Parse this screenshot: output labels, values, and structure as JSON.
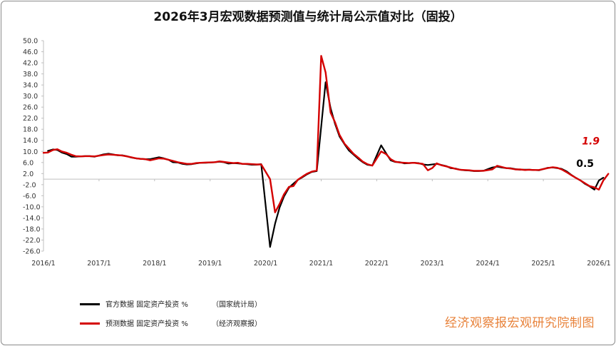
{
  "chart_data": {
    "type": "line",
    "title": "2026年3月宏观数据预测值与统计局公示值对比（固投）",
    "xlabel": "",
    "ylabel": "",
    "ylim": [
      -26,
      50
    ],
    "yticks": [
      "50.0",
      "46.0",
      "42.0",
      "38.0",
      "34.0",
      "30.0",
      "26.0",
      "22.0",
      "18.0",
      "14.0",
      "10.0",
      "6.0",
      "2.0",
      "-2.0",
      "-6.0",
      "-10.0",
      "-14.0",
      "-18.0",
      "-22.0",
      "-26.0"
    ],
    "xticks": [
      "2016/1",
      "2017/1",
      "2018/1",
      "2019/1",
      "2020/1",
      "2021/1",
      "2022/1",
      "2023/1",
      "2024/1",
      "2025/1",
      "2026/1"
    ],
    "grid": false,
    "legend_position": "bottom-left",
    "series": [
      {
        "name": "官方数据 固定资产投资 %",
        "source": "（国家统计局）",
        "color": "#000000",
        "points": [
          [
            2016.08,
            10.2
          ],
          [
            2016.17,
            10.7
          ],
          [
            2016.25,
            10.5
          ],
          [
            2016.33,
            9.6
          ],
          [
            2016.42,
            9.0
          ],
          [
            2016.5,
            8.1
          ],
          [
            2016.58,
            8.1
          ],
          [
            2016.67,
            8.2
          ],
          [
            2016.75,
            8.3
          ],
          [
            2016.83,
            8.3
          ],
          [
            2016.92,
            8.1
          ],
          [
            2017.08,
            8.9
          ],
          [
            2017.17,
            9.2
          ],
          [
            2017.25,
            8.9
          ],
          [
            2017.33,
            8.6
          ],
          [
            2017.42,
            8.6
          ],
          [
            2017.5,
            8.3
          ],
          [
            2017.58,
            7.8
          ],
          [
            2017.67,
            7.5
          ],
          [
            2017.75,
            7.3
          ],
          [
            2017.83,
            7.2
          ],
          [
            2017.92,
            7.2
          ],
          [
            2018.08,
            7.9
          ],
          [
            2018.17,
            7.5
          ],
          [
            2018.25,
            7.0
          ],
          [
            2018.33,
            6.1
          ],
          [
            2018.42,
            6.0
          ],
          [
            2018.5,
            5.5
          ],
          [
            2018.58,
            5.3
          ],
          [
            2018.67,
            5.4
          ],
          [
            2018.75,
            5.7
          ],
          [
            2018.83,
            5.9
          ],
          [
            2018.92,
            5.9
          ],
          [
            2019.08,
            6.1
          ],
          [
            2019.17,
            6.3
          ],
          [
            2019.25,
            6.1
          ],
          [
            2019.33,
            5.6
          ],
          [
            2019.42,
            5.8
          ],
          [
            2019.5,
            5.7
          ],
          [
            2019.58,
            5.5
          ],
          [
            2019.67,
            5.4
          ],
          [
            2019.75,
            5.2
          ],
          [
            2019.83,
            5.2
          ],
          [
            2019.92,
            5.4
          ],
          [
            2020.08,
            -24.5
          ],
          [
            2020.17,
            -16.1
          ],
          [
            2020.25,
            -10.3
          ],
          [
            2020.33,
            -6.3
          ],
          [
            2020.42,
            -3.1
          ],
          [
            2020.5,
            -1.6
          ],
          [
            2020.58,
            -0.3
          ],
          [
            2020.67,
            0.8
          ],
          [
            2020.75,
            1.8
          ],
          [
            2020.83,
            2.6
          ],
          [
            2020.92,
            2.9
          ],
          [
            2021.08,
            35.0
          ],
          [
            2021.17,
            25.6
          ],
          [
            2021.25,
            19.9
          ],
          [
            2021.33,
            15.4
          ],
          [
            2021.42,
            12.6
          ],
          [
            2021.5,
            10.3
          ],
          [
            2021.58,
            8.9
          ],
          [
            2021.67,
            7.3
          ],
          [
            2021.75,
            6.1
          ],
          [
            2021.83,
            5.2
          ],
          [
            2021.92,
            4.9
          ],
          [
            2022.08,
            12.2
          ],
          [
            2022.17,
            9.3
          ],
          [
            2022.25,
            6.8
          ],
          [
            2022.33,
            6.2
          ],
          [
            2022.42,
            6.1
          ],
          [
            2022.5,
            5.7
          ],
          [
            2022.58,
            5.8
          ],
          [
            2022.67,
            5.9
          ],
          [
            2022.75,
            5.8
          ],
          [
            2022.83,
            5.3
          ],
          [
            2022.92,
            5.1
          ],
          [
            2023.08,
            5.5
          ],
          [
            2023.17,
            5.1
          ],
          [
            2023.25,
            4.7
          ],
          [
            2023.33,
            4.0
          ],
          [
            2023.42,
            3.8
          ],
          [
            2023.5,
            3.4
          ],
          [
            2023.58,
            3.2
          ],
          [
            2023.67,
            3.1
          ],
          [
            2023.75,
            2.9
          ],
          [
            2023.83,
            2.9
          ],
          [
            2023.92,
            3.0
          ],
          [
            2024.08,
            4.2
          ],
          [
            2024.17,
            4.5
          ],
          [
            2024.25,
            4.2
          ],
          [
            2024.33,
            4.0
          ],
          [
            2024.42,
            3.9
          ],
          [
            2024.5,
            3.6
          ],
          [
            2024.58,
            3.4
          ],
          [
            2024.67,
            3.4
          ],
          [
            2024.75,
            3.4
          ],
          [
            2024.83,
            3.3
          ],
          [
            2024.92,
            3.2
          ],
          [
            2025.08,
            4.1
          ],
          [
            2025.17,
            4.2
          ],
          [
            2025.25,
            4.0
          ],
          [
            2025.33,
            3.7
          ],
          [
            2025.42,
            2.8
          ],
          [
            2025.5,
            1.6
          ],
          [
            2025.58,
            0.5
          ],
          [
            2025.67,
            -0.5
          ],
          [
            2025.75,
            -1.7
          ],
          [
            2025.83,
            -2.6
          ],
          [
            2025.92,
            -3.8
          ],
          [
            2026.0,
            -0.5
          ],
          [
            2026.08,
            0.5
          ]
        ]
      },
      {
        "name": "预测数据 固定资产投资 %",
        "source": "（经济观察报）",
        "color": "#d40000",
        "points": [
          [
            2016.0,
            9.5
          ],
          [
            2016.08,
            9.6
          ],
          [
            2016.17,
            10.5
          ],
          [
            2016.25,
            10.8
          ],
          [
            2016.33,
            10.0
          ],
          [
            2016.42,
            9.5
          ],
          [
            2016.5,
            8.8
          ],
          [
            2016.58,
            8.3
          ],
          [
            2016.67,
            8.2
          ],
          [
            2016.75,
            8.3
          ],
          [
            2016.83,
            8.3
          ],
          [
            2016.92,
            8.2
          ],
          [
            2017.08,
            8.7
          ],
          [
            2017.17,
            8.9
          ],
          [
            2017.25,
            8.8
          ],
          [
            2017.33,
            8.7
          ],
          [
            2017.42,
            8.5
          ],
          [
            2017.5,
            8.2
          ],
          [
            2017.58,
            7.9
          ],
          [
            2017.67,
            7.5
          ],
          [
            2017.75,
            7.3
          ],
          [
            2017.83,
            7.2
          ],
          [
            2017.92,
            6.8
          ],
          [
            2018.08,
            7.5
          ],
          [
            2018.17,
            7.4
          ],
          [
            2018.25,
            7.0
          ],
          [
            2018.33,
            6.6
          ],
          [
            2018.42,
            6.1
          ],
          [
            2018.5,
            5.8
          ],
          [
            2018.58,
            5.5
          ],
          [
            2018.67,
            5.5
          ],
          [
            2018.75,
            5.8
          ],
          [
            2018.83,
            5.9
          ],
          [
            2018.92,
            6.0
          ],
          [
            2019.08,
            6.1
          ],
          [
            2019.17,
            6.4
          ],
          [
            2019.25,
            6.2
          ],
          [
            2019.33,
            6.0
          ],
          [
            2019.42,
            5.8
          ],
          [
            2019.5,
            5.9
          ],
          [
            2019.58,
            5.5
          ],
          [
            2019.67,
            5.5
          ],
          [
            2019.75,
            5.4
          ],
          [
            2019.83,
            5.3
          ],
          [
            2019.92,
            5.3
          ],
          [
            2020.08,
            0.0
          ],
          [
            2020.17,
            -12.0
          ],
          [
            2020.25,
            -9.0
          ],
          [
            2020.33,
            -5.5
          ],
          [
            2020.42,
            -2.8
          ],
          [
            2020.5,
            -2.5
          ],
          [
            2020.58,
            -0.2
          ],
          [
            2020.67,
            1.0
          ],
          [
            2020.75,
            2.0
          ],
          [
            2020.83,
            2.7
          ],
          [
            2020.92,
            3.1
          ],
          [
            2021.0,
            44.5
          ],
          [
            2021.08,
            38.5
          ],
          [
            2021.17,
            24.0
          ],
          [
            2021.25,
            20.5
          ],
          [
            2021.33,
            16.0
          ],
          [
            2021.42,
            12.8
          ],
          [
            2021.5,
            11.0
          ],
          [
            2021.58,
            9.2
          ],
          [
            2021.67,
            7.7
          ],
          [
            2021.75,
            6.3
          ],
          [
            2021.83,
            5.4
          ],
          [
            2021.92,
            4.9
          ],
          [
            2022.08,
            10.0
          ],
          [
            2022.17,
            9.0
          ],
          [
            2022.25,
            7.2
          ],
          [
            2022.33,
            6.3
          ],
          [
            2022.42,
            6.0
          ],
          [
            2022.5,
            5.9
          ],
          [
            2022.58,
            5.8
          ],
          [
            2022.67,
            5.9
          ],
          [
            2022.75,
            5.7
          ],
          [
            2022.83,
            5.5
          ],
          [
            2022.92,
            3.2
          ],
          [
            2023.0,
            4.0
          ],
          [
            2023.08,
            5.7
          ],
          [
            2023.17,
            5.0
          ],
          [
            2023.25,
            4.6
          ],
          [
            2023.33,
            4.2
          ],
          [
            2023.42,
            3.7
          ],
          [
            2023.5,
            3.4
          ],
          [
            2023.58,
            3.3
          ],
          [
            2023.67,
            3.2
          ],
          [
            2023.75,
            3.0
          ],
          [
            2023.83,
            3.0
          ],
          [
            2023.92,
            3.0
          ],
          [
            2024.08,
            3.5
          ],
          [
            2024.17,
            4.8
          ],
          [
            2024.25,
            4.4
          ],
          [
            2024.33,
            4.0
          ],
          [
            2024.42,
            3.8
          ],
          [
            2024.5,
            3.5
          ],
          [
            2024.58,
            3.5
          ],
          [
            2024.67,
            3.3
          ],
          [
            2024.75,
            3.4
          ],
          [
            2024.83,
            3.3
          ],
          [
            2024.92,
            3.3
          ],
          [
            2025.08,
            4.0
          ],
          [
            2025.17,
            4.3
          ],
          [
            2025.25,
            4.1
          ],
          [
            2025.33,
            3.5
          ],
          [
            2025.42,
            2.5
          ],
          [
            2025.5,
            1.5
          ],
          [
            2025.58,
            0.5
          ],
          [
            2025.67,
            -0.5
          ],
          [
            2025.75,
            -1.5
          ],
          [
            2025.83,
            -2.5
          ],
          [
            2025.92,
            -3.0
          ],
          [
            2026.0,
            -3.8
          ],
          [
            2026.08,
            -0.5
          ],
          [
            2026.17,
            1.9
          ]
        ]
      }
    ],
    "annotations": [
      {
        "text": "1.9",
        "color": "#d40000",
        "style": "bold-italic",
        "x": 2026.17,
        "y": 1.9
      },
      {
        "text": "0.5",
        "color": "#000000",
        "style": "bold",
        "x": 2026.08,
        "y": 0.5
      }
    ]
  },
  "legend": {
    "official_label": "官方数据 固定资产投资 %",
    "official_source": "（国家统计局）",
    "forecast_label": "预测数据 固定资产投资 %",
    "forecast_source": "（经济观察报）"
  },
  "watermark": "经济观察报宏观研究院制图"
}
